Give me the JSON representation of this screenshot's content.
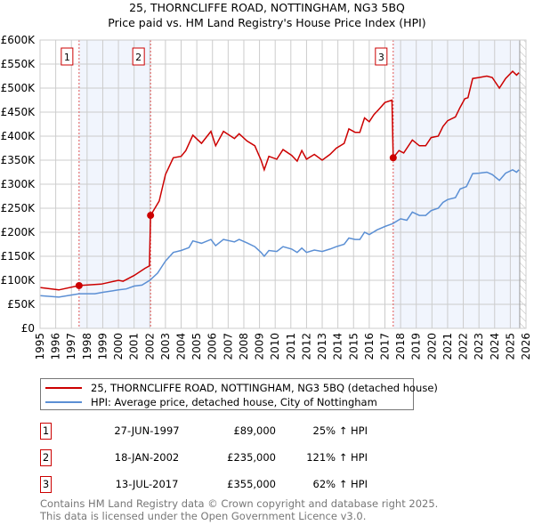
{
  "chart_data": {
    "type": "line",
    "title": "25, THORNCLIFFE ROAD, NOTTINGHAM, NG3 5BQ",
    "subtitle": "Price paid vs. HM Land Registry's House Price Index (HPI)",
    "xlim": [
      1995,
      2026
    ],
    "ylim": [
      0,
      600000
    ],
    "grid": true,
    "x_ticks": [
      "1995",
      "1996",
      "1997",
      "1998",
      "1999",
      "2000",
      "2001",
      "2002",
      "2003",
      "2004",
      "2005",
      "2006",
      "2007",
      "2008",
      "2009",
      "2010",
      "2011",
      "2012",
      "2013",
      "2014",
      "2015",
      "2016",
      "2017",
      "2018",
      "2019",
      "2020",
      "2021",
      "2022",
      "2023",
      "2024",
      "2025",
      "2026"
    ],
    "y_ticks": [
      {
        "value": 0,
        "label": "£0"
      },
      {
        "value": 50000,
        "label": "£50K"
      },
      {
        "value": 100000,
        "label": "£100K"
      },
      {
        "value": 150000,
        "label": "£150K"
      },
      {
        "value": 200000,
        "label": "£200K"
      },
      {
        "value": 250000,
        "label": "£250K"
      },
      {
        "value": 300000,
        "label": "£300K"
      },
      {
        "value": 350000,
        "label": "£350K"
      },
      {
        "value": 400000,
        "label": "£400K"
      },
      {
        "value": 450000,
        "label": "£450K"
      },
      {
        "value": 500000,
        "label": "£500K"
      },
      {
        "value": 550000,
        "label": "£550K"
      },
      {
        "value": 600000,
        "label": "£600K"
      }
    ],
    "data_end_year": 2025.6,
    "series": [
      {
        "name": "25, THORNCLIFFE ROAD, NOTTINGHAM, NG3 5BQ (detached house)",
        "color": "#cc0000",
        "points": [
          [
            1995,
            85
          ],
          [
            1996.2,
            80
          ],
          [
            1997.49,
            89
          ],
          [
            1998.9,
            92
          ],
          [
            2000,
            100
          ],
          [
            2000.3,
            98
          ],
          [
            2001,
            110
          ],
          [
            2001.7,
            125
          ],
          [
            2001.98,
            130
          ],
          [
            2002.05,
            235
          ],
          [
            2002.6,
            265
          ],
          [
            2003,
            320
          ],
          [
            2003.5,
            355
          ],
          [
            2004,
            358
          ],
          [
            2004.3,
            370
          ],
          [
            2004.75,
            402
          ],
          [
            2005.3,
            385
          ],
          [
            2005.9,
            410
          ],
          [
            2006.2,
            380
          ],
          [
            2006.7,
            410
          ],
          [
            2007.4,
            395
          ],
          [
            2007.7,
            405
          ],
          [
            2008.2,
            390
          ],
          [
            2008.7,
            380
          ],
          [
            2009.1,
            350
          ],
          [
            2009.3,
            330
          ],
          [
            2009.6,
            358
          ],
          [
            2010.1,
            352
          ],
          [
            2010.5,
            372
          ],
          [
            2011.05,
            360
          ],
          [
            2011.4,
            348
          ],
          [
            2011.7,
            370
          ],
          [
            2012,
            352
          ],
          [
            2012.5,
            362
          ],
          [
            2013,
            350
          ],
          [
            2013.5,
            362
          ],
          [
            2013.9,
            375
          ],
          [
            2014.4,
            385
          ],
          [
            2014.7,
            415
          ],
          [
            2015.1,
            408
          ],
          [
            2015.4,
            408
          ],
          [
            2015.7,
            438
          ],
          [
            2016,
            430
          ],
          [
            2016.3,
            445
          ],
          [
            2016.6,
            455
          ],
          [
            2017,
            470
          ],
          [
            2017.45,
            475
          ],
          [
            2017.53,
            355
          ],
          [
            2017.9,
            370
          ],
          [
            2018.2,
            365
          ],
          [
            2018.75,
            392
          ],
          [
            2019.2,
            380
          ],
          [
            2019.6,
            380
          ],
          [
            2019.95,
            397
          ],
          [
            2020.4,
            400
          ],
          [
            2020.7,
            420
          ],
          [
            2021,
            432
          ],
          [
            2021.5,
            440
          ],
          [
            2021.8,
            460
          ],
          [
            2022.1,
            478
          ],
          [
            2022.3,
            480
          ],
          [
            2022.6,
            520
          ],
          [
            2023,
            522
          ],
          [
            2023.5,
            525
          ],
          [
            2023.85,
            522
          ],
          [
            2024.3,
            500
          ],
          [
            2024.7,
            520
          ],
          [
            2025.15,
            535
          ],
          [
            2025.4,
            527
          ],
          [
            2025.55,
            532
          ]
        ]
      },
      {
        "name": "HPI: Average price, detached house, City of Nottingham",
        "color": "#5b8fd4",
        "points": [
          [
            1995,
            68
          ],
          [
            1996.2,
            65
          ],
          [
            1997.5,
            72
          ],
          [
            1998.5,
            72
          ],
          [
            1999,
            75
          ],
          [
            2000,
            80
          ],
          [
            2000.5,
            82
          ],
          [
            2001,
            88
          ],
          [
            2001.5,
            90
          ],
          [
            2002,
            100
          ],
          [
            2002.5,
            115
          ],
          [
            2003,
            140
          ],
          [
            2003.5,
            158
          ],
          [
            2004,
            162
          ],
          [
            2004.5,
            168
          ],
          [
            2004.75,
            182
          ],
          [
            2005.3,
            177
          ],
          [
            2005.9,
            185
          ],
          [
            2006.2,
            172
          ],
          [
            2006.7,
            185
          ],
          [
            2007.4,
            180
          ],
          [
            2007.7,
            185
          ],
          [
            2008.2,
            178
          ],
          [
            2008.7,
            170
          ],
          [
            2009.1,
            158
          ],
          [
            2009.3,
            150
          ],
          [
            2009.6,
            162
          ],
          [
            2010.1,
            160
          ],
          [
            2010.5,
            170
          ],
          [
            2011.05,
            165
          ],
          [
            2011.4,
            158
          ],
          [
            2011.7,
            167
          ],
          [
            2012,
            158
          ],
          [
            2012.5,
            163
          ],
          [
            2013,
            160
          ],
          [
            2013.5,
            165
          ],
          [
            2013.9,
            170
          ],
          [
            2014.4,
            175
          ],
          [
            2014.7,
            188
          ],
          [
            2015.1,
            185
          ],
          [
            2015.4,
            185
          ],
          [
            2015.7,
            200
          ],
          [
            2016,
            195
          ],
          [
            2016.5,
            205
          ],
          [
            2017,
            212
          ],
          [
            2017.5,
            218
          ],
          [
            2018,
            228
          ],
          [
            2018.4,
            225
          ],
          [
            2018.75,
            242
          ],
          [
            2019.2,
            235
          ],
          [
            2019.6,
            235
          ],
          [
            2019.95,
            245
          ],
          [
            2020.4,
            250
          ],
          [
            2020.7,
            262
          ],
          [
            2021,
            268
          ],
          [
            2021.5,
            272
          ],
          [
            2021.8,
            290
          ],
          [
            2022.2,
            295
          ],
          [
            2022.6,
            322
          ],
          [
            2023,
            323
          ],
          [
            2023.5,
            325
          ],
          [
            2023.85,
            320
          ],
          [
            2024.3,
            308
          ],
          [
            2024.7,
            323
          ],
          [
            2025.15,
            330
          ],
          [
            2025.4,
            325
          ],
          [
            2025.55,
            330
          ]
        ]
      }
    ],
    "sales": [
      {
        "id": "1",
        "year": 1997.49,
        "price": 89000
      },
      {
        "id": "2",
        "year": 2002.05,
        "price": 235000
      },
      {
        "id": "3",
        "year": 2017.53,
        "price": 355000
      }
    ],
    "shaded_ranges": [
      [
        1997.49,
        2002.05
      ],
      [
        2017.53,
        2025.6
      ]
    ]
  },
  "legend": {
    "property": "25, THORNCLIFFE ROAD, NOTTINGHAM, NG3 5BQ (detached house)",
    "hpi": "HPI: Average price, detached house, City of Nottingham"
  },
  "transactions": [
    {
      "id": "1",
      "date": "27-JUN-1997",
      "price": "£89,000",
      "hpi": "25% ↑ HPI"
    },
    {
      "id": "2",
      "date": "18-JAN-2002",
      "price": "£235,000",
      "hpi": "121% ↑ HPI"
    },
    {
      "id": "3",
      "date": "13-JUL-2017",
      "price": "£355,000",
      "hpi": "62% ↑ HPI"
    }
  ],
  "footer": {
    "line1": "Contains HM Land Registry data © Crown copyright and database right 2025.",
    "line2": "This data is licensed under the Open Government Licence v3.0."
  }
}
